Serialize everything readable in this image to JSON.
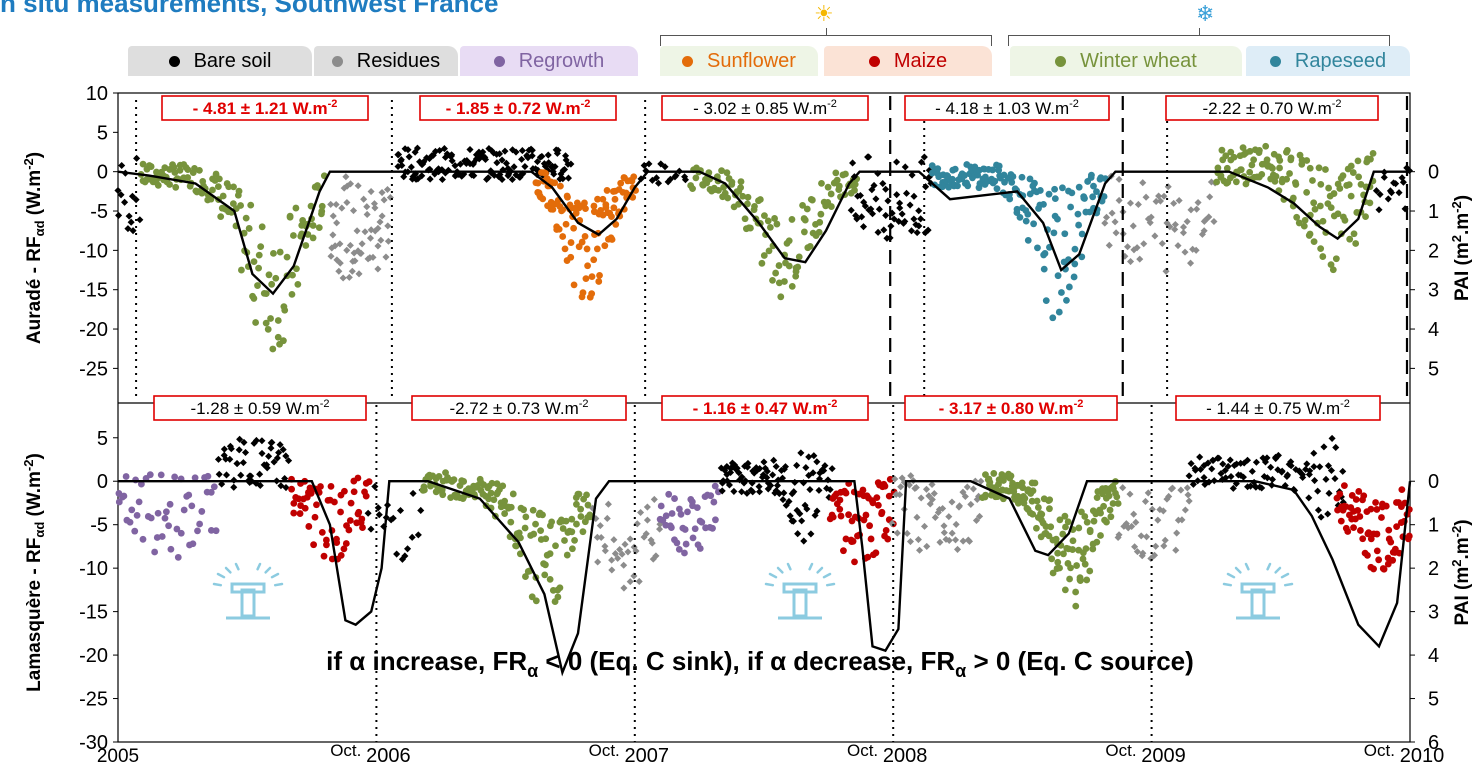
{
  "title": "n situ measurements, Southwest France",
  "icons": {
    "sun": "☀",
    "snow": "❄"
  },
  "legend": [
    {
      "label": "Bare soil",
      "color": "#000000",
      "bg": "#dedede"
    },
    {
      "label": "Residues",
      "color": "#8c8c8c",
      "bg": "#dedede"
    },
    {
      "label": "Regrowth",
      "color": "#8064a2",
      "bg": "#e8dcf4"
    },
    {
      "label": "Sunflower",
      "color": "#e36c0a",
      "bg": "#eef5e6"
    },
    {
      "label": "Maize",
      "color": "#c00000",
      "bg": "#fbe3d6"
    },
    {
      "label": "Winter wheat",
      "color": "#77933c",
      "bg": "#eef5e6"
    },
    {
      "label": "Rapeseed",
      "color": "#31859c",
      "bg": "#deedf7"
    }
  ],
  "chart_data": [
    {
      "type": "scatter",
      "site": "Auradé",
      "ylabel_left": "Auradé - RF",
      "ylabel_left_sub": "αd",
      "ylabel_left_unit": " (W.m",
      "ylabel_left_sup": "-2",
      "ylabel_left_end": ")",
      "ylabel_right": "PAI (m",
      "ylabel_right_sup1": "2",
      "ylabel_right_mid": ".m",
      "ylabel_right_sup2": "-2",
      "ylabel_right_end": ")",
      "ylim": [
        -30,
        10
      ],
      "yticks": [
        10,
        5,
        0,
        -5,
        -10,
        -15,
        -20,
        -25
      ],
      "pai_ticks": [
        0,
        1,
        2,
        3,
        4,
        5
      ],
      "boxes": [
        {
          "value": "- 4.81 ± 1.21 W.m",
          "sup": "-2",
          "highlight": true
        },
        {
          "value": "- 1.85 ± 0.72 W.m",
          "sup": "-2",
          "highlight": true
        },
        {
          "value": "- 3.02 ± 0.85 W.m",
          "sup": "-2",
          "highlight": false
        },
        {
          "value": "- 4.18 ± 1.03 W.m",
          "sup": "-2",
          "highlight": false
        },
        {
          "value": "-2.22 ± 0.70 W.m",
          "sup": "-2",
          "highlight": false
        }
      ],
      "pai_curve": [
        [
          2005.0,
          0
        ],
        [
          2005.12,
          0.1
        ],
        [
          2005.3,
          0.3
        ],
        [
          2005.45,
          1.0
        ],
        [
          2005.52,
          2.6
        ],
        [
          2005.6,
          3.1
        ],
        [
          2005.68,
          2.4
        ],
        [
          2005.78,
          0.5
        ],
        [
          2005.82,
          0
        ],
        [
          2006.6,
          0
        ],
        [
          2006.68,
          0.4
        ],
        [
          2006.78,
          1.3
        ],
        [
          2006.86,
          1.6
        ],
        [
          2006.93,
          1.2
        ],
        [
          2007.0,
          0.4
        ],
        [
          2007.05,
          0
        ],
        [
          2007.25,
          0
        ],
        [
          2007.35,
          0.3
        ],
        [
          2007.48,
          1.3
        ],
        [
          2007.58,
          2.2
        ],
        [
          2007.66,
          2.3
        ],
        [
          2007.74,
          1.5
        ],
        [
          2007.83,
          0.3
        ],
        [
          2007.87,
          0
        ],
        [
          2008.1,
          0
        ],
        [
          2008.22,
          0.7
        ],
        [
          2008.35,
          0.6
        ],
        [
          2008.48,
          0.5
        ],
        [
          2008.58,
          1.3
        ],
        [
          2008.65,
          2.5
        ],
        [
          2008.72,
          2.1
        ],
        [
          2008.82,
          0.3
        ],
        [
          2008.86,
          0
        ],
        [
          2009.3,
          0
        ],
        [
          2009.45,
          0.4
        ],
        [
          2009.55,
          0.8
        ],
        [
          2009.65,
          1.4
        ],
        [
          2009.72,
          1.7
        ],
        [
          2009.8,
          1.2
        ],
        [
          2009.86,
          0
        ],
        [
          2010.0,
          0
        ]
      ]
    },
    {
      "type": "scatter",
      "site": "Lamasquère",
      "ylabel_left": "Lamasquère - RF",
      "ylabel_left_sub": "αd",
      "ylabel_left_unit": " (W.m",
      "ylabel_left_sup": "-2",
      "ylabel_left_end": ")",
      "ylabel_right": "PAI (m",
      "ylabel_right_sup1": "2",
      "ylabel_right_mid": ".m",
      "ylabel_right_sup2": "-2",
      "ylabel_right_end": ")",
      "ylim": [
        -30,
        10
      ],
      "yticks": [
        5,
        0,
        -5,
        -10,
        -15,
        -20,
        -25,
        -30
      ],
      "pai_ticks": [
        0,
        1,
        2,
        3,
        4,
        5,
        6
      ],
      "boxes": [
        {
          "value": "-1.28 ± 0.59 W.m",
          "sup": "-2",
          "highlight": false
        },
        {
          "value": "-2.72 ± 0.73 W.m",
          "sup": "-2",
          "highlight": false
        },
        {
          "value": "- 1.16 ± 0.47 W.m",
          "sup": "-2",
          "highlight": true
        },
        {
          "value": "- 3.17 ± 0.80 W.m",
          "sup": "-2",
          "highlight": true
        },
        {
          "value": "- 1.44 ± 0.75 W.m",
          "sup": "-2",
          "highlight": false
        }
      ],
      "pai_curve": [
        [
          2005.0,
          0
        ],
        [
          2005.75,
          0
        ],
        [
          2005.82,
          1.0
        ],
        [
          2005.88,
          3.2
        ],
        [
          2005.92,
          3.3
        ],
        [
          2005.98,
          3.0
        ],
        [
          2006.02,
          2.0
        ],
        [
          2006.05,
          0
        ],
        [
          2006.2,
          0
        ],
        [
          2006.4,
          0.4
        ],
        [
          2006.55,
          1.4
        ],
        [
          2006.65,
          2.6
        ],
        [
          2006.72,
          4.4
        ],
        [
          2006.78,
          3.5
        ],
        [
          2006.85,
          0.4
        ],
        [
          2006.9,
          0
        ],
        [
          2007.85,
          0
        ],
        [
          2007.88,
          1.5
        ],
        [
          2007.92,
          3.8
        ],
        [
          2007.97,
          3.9
        ],
        [
          2008.02,
          3.4
        ],
        [
          2008.05,
          0
        ],
        [
          2008.3,
          0
        ],
        [
          2008.45,
          0.4
        ],
        [
          2008.55,
          1.6
        ],
        [
          2008.6,
          1.7
        ],
        [
          2008.68,
          1.2
        ],
        [
          2008.75,
          0
        ],
        [
          2009.4,
          0
        ],
        [
          2009.55,
          0.2
        ],
        [
          2009.62,
          0.8
        ],
        [
          2009.7,
          1.8
        ],
        [
          2009.8,
          3.3
        ],
        [
          2009.88,
          3.8
        ],
        [
          2009.95,
          2.8
        ],
        [
          2010.0,
          0
        ]
      ]
    }
  ],
  "x_labels": [
    {
      "text": "2005",
      "x": 2005.0
    },
    {
      "text": "Oct.",
      "x": 2006.0,
      "suffix": "2006"
    },
    {
      "text": "Oct.",
      "x": 2007.0,
      "suffix": "2007"
    },
    {
      "text": "Oct.",
      "x": 2008.0,
      "suffix": "2008"
    },
    {
      "text": "Oct.",
      "x": 2009.0,
      "suffix": "2009"
    },
    {
      "text": "Oct.",
      "x": 2010.0,
      "suffix": "2010"
    }
  ],
  "annotation": {
    "part1": "if α  increase, FR",
    "sub1": "α",
    "part2": " < 0 (Eq. C sink)",
    "part3": ", if α  decrease, FR",
    "sub2": "α",
    "part4": " > 0 (Eq. C source)"
  }
}
